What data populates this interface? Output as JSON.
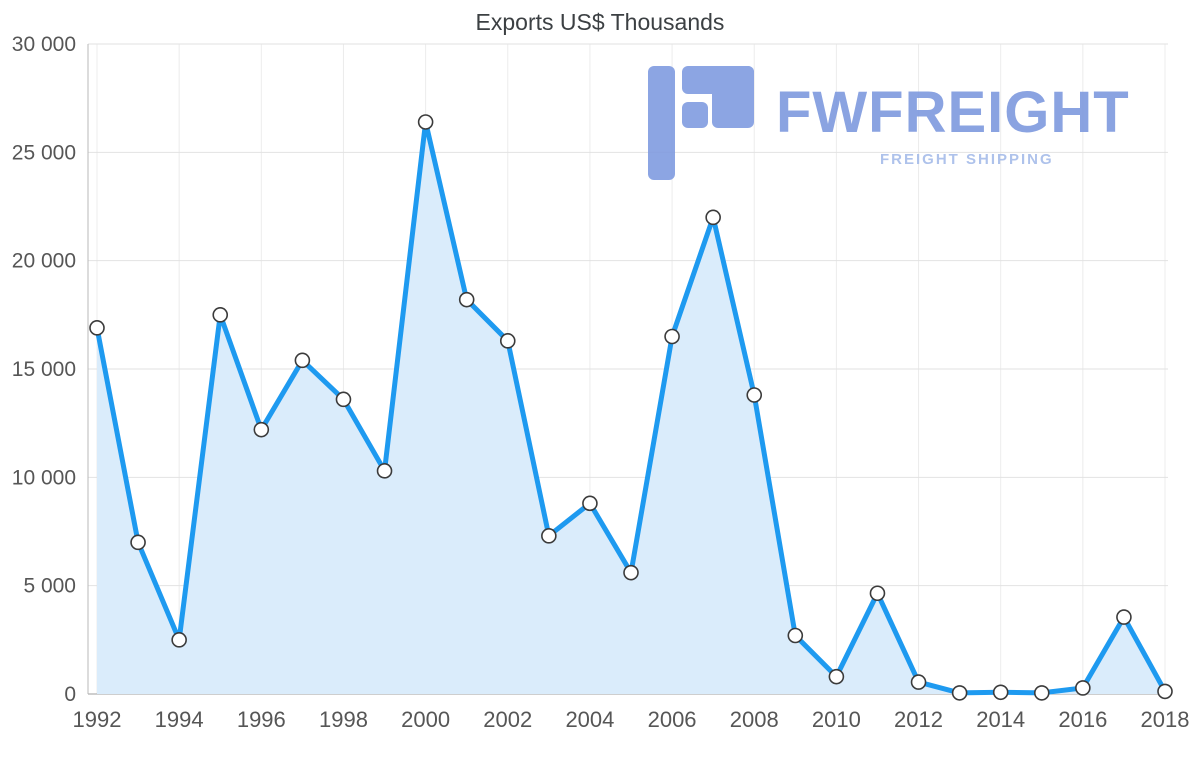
{
  "chart_data": {
    "type": "area",
    "title": "Exports US$ Thousands",
    "x": [
      1992,
      1993,
      1994,
      1995,
      1996,
      1997,
      1998,
      1999,
      2000,
      2001,
      2002,
      2003,
      2004,
      2005,
      2006,
      2007,
      2008,
      2009,
      2010,
      2011,
      2012,
      2013,
      2014,
      2015,
      2016,
      2017,
      2018
    ],
    "series": [
      {
        "name": "Exports US$ Thousands",
        "values": [
          16900,
          7000,
          2500,
          17500,
          12200,
          15400,
          13600,
          10300,
          26400,
          18200,
          16300,
          7300,
          8800,
          5600,
          16500,
          22000,
          13800,
          2700,
          800,
          4650,
          550,
          50,
          80,
          50,
          280,
          3550,
          120
        ]
      }
    ],
    "ylim": [
      0,
      30000
    ],
    "yticks": [
      0,
      5000,
      10000,
      15000,
      20000,
      25000,
      30000
    ],
    "ytick_labels": [
      "0",
      "5 000",
      "10 000",
      "15 000",
      "20 000",
      "25 000",
      "30 000"
    ],
    "xticks": [
      1992,
      1994,
      1996,
      1998,
      2000,
      2002,
      2004,
      2006,
      2008,
      2010,
      2012,
      2014,
      2016,
      2018
    ],
    "xtick_labels": [
      "1992",
      "1994",
      "1996",
      "1998",
      "2000",
      "2002",
      "2004",
      "2006",
      "2008",
      "2010",
      "2012",
      "2014",
      "2016",
      "2018"
    ],
    "grid": true,
    "legend": "none",
    "marker": "circle"
  },
  "watermark": {
    "brand": "FWFREIGHT",
    "tagline": "FREIGHT SHIPPING"
  },
  "colors": {
    "line": "#1e9af0",
    "area": "#daecfb",
    "marker_fill": "#ffffff",
    "marker_stroke": "#3b3b3b",
    "grid_h": "#e2e2e2",
    "grid_v": "#ececec",
    "axis": "#b8b8b8",
    "tick_text": "#565656",
    "title_text": "#3c4043",
    "brand": "#7b97de",
    "tagline": "#a3bae9",
    "logo_icon": "#7d99e0"
  }
}
